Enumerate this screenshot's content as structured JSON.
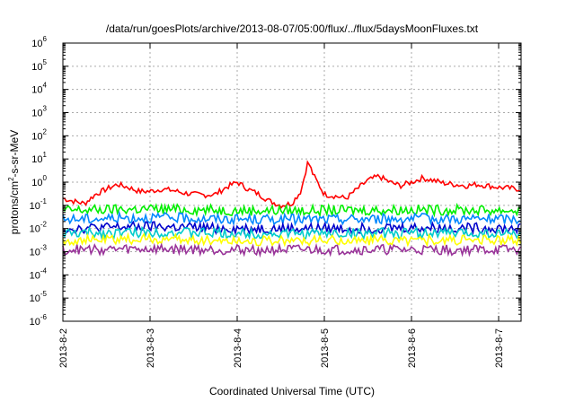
{
  "chart_data": {
    "type": "line",
    "title": "/data/run/goesPlots/archive/2013-08-07/05:00/flux/../flux/5daysMoonFluxes.txt",
    "xlabel": "Coordinated Universal Time (UTC)",
    "ylabel": "protons/cm²-s-sr-MeV",
    "ylabel_parts": [
      "protons/cm",
      "2",
      "-s-sr-MeV"
    ],
    "yscale": "log",
    "ylim": [
      1e-06,
      1000000.0
    ],
    "xlim": [
      "2013-8-2",
      "2013-8-7T06:30"
    ],
    "x_ticks": [
      "2013-8-2",
      "2013-8-3",
      "2013-8-4",
      "2013-8-5",
      "2013-8-6",
      "2013-8-7"
    ],
    "y_ticks": [
      {
        "base": "10",
        "exp": "-6"
      },
      {
        "base": "10",
        "exp": "-5"
      },
      {
        "base": "10",
        "exp": "-4"
      },
      {
        "base": "10",
        "exp": "-3"
      },
      {
        "base": "10",
        "exp": "-2"
      },
      {
        "base": "10",
        "exp": "-1"
      },
      {
        "base": "10",
        "exp": "0"
      },
      {
        "base": "10",
        "exp": "1"
      },
      {
        "base": "10",
        "exp": "2"
      },
      {
        "base": "10",
        "exp": "3"
      },
      {
        "base": "10",
        "exp": "4"
      },
      {
        "base": "10",
        "exp": "5"
      },
      {
        "base": "10",
        "exp": "6"
      }
    ],
    "grid": true,
    "series": [
      {
        "color": "#ff0000",
        "x": [
          "2013-8-2T00:00",
          "2013-8-2T03:00",
          "2013-8-2T06:00",
          "2013-8-2T09:00",
          "2013-8-2T12:00",
          "2013-8-2T15:00",
          "2013-8-2T18:00",
          "2013-8-2T21:00",
          "2013-8-3T00:00",
          "2013-8-3T03:00",
          "2013-8-3T06:00",
          "2013-8-3T09:00",
          "2013-8-3T12:00",
          "2013-8-3T15:00",
          "2013-8-3T18:00",
          "2013-8-3T21:00",
          "2013-8-4T00:00",
          "2013-8-4T03:00",
          "2013-8-4T06:00",
          "2013-8-4T09:00",
          "2013-8-4T12:00",
          "2013-8-4T15:00",
          "2013-8-4T17:30",
          "2013-8-4T18:00",
          "2013-8-4T19:30",
          "2013-8-4T21:00",
          "2013-8-5T00:00",
          "2013-8-5T03:00",
          "2013-8-5T06:00",
          "2013-8-5T09:00",
          "2013-8-5T12:00",
          "2013-8-5T15:00",
          "2013-8-5T18:00",
          "2013-8-5T21:00",
          "2013-8-6T00:00",
          "2013-8-6T03:00",
          "2013-8-6T06:00",
          "2013-8-6T09:00",
          "2013-8-6T12:00",
          "2013-8-6T15:00",
          "2013-8-6T18:00",
          "2013-8-6T21:00",
          "2013-8-7T00:00",
          "2013-8-7T03:00",
          "2013-8-7T06:00"
        ],
        "values": [
          0.2,
          0.15,
          0.12,
          0.3,
          0.5,
          0.8,
          0.6,
          0.4,
          0.4,
          0.5,
          0.45,
          0.35,
          0.3,
          0.28,
          0.3,
          0.6,
          1.0,
          0.5,
          0.3,
          0.15,
          0.1,
          0.12,
          0.4,
          0.8,
          8,
          2,
          0.3,
          0.25,
          0.2,
          0.5,
          1.2,
          1.8,
          1.0,
          0.7,
          1.0,
          1.5,
          1.2,
          0.9,
          0.8,
          0.7,
          0.8,
          0.7,
          0.6,
          0.55,
          0.5
        ]
      },
      {
        "color": "#00ee00",
        "x": [
          "2013-8-2",
          "2013-8-3",
          "2013-8-4",
          "2013-8-5",
          "2013-8-6",
          "2013-8-7T06:00"
        ],
        "values": [
          0.06,
          0.07,
          0.06,
          0.06,
          0.065,
          0.06
        ]
      },
      {
        "color": "#0088ff",
        "x": [
          "2013-8-2",
          "2013-8-3",
          "2013-8-4",
          "2013-8-5",
          "2013-8-6",
          "2013-8-7T06:00"
        ],
        "values": [
          0.025,
          0.03,
          0.025,
          0.025,
          0.027,
          0.025
        ]
      },
      {
        "color": "#0000cc",
        "x": [
          "2013-8-2",
          "2013-8-3",
          "2013-8-4",
          "2013-8-5",
          "2013-8-6",
          "2013-8-7T06:00"
        ],
        "values": [
          0.01,
          0.012,
          0.01,
          0.01,
          0.011,
          0.01
        ]
      },
      {
        "color": "#00cccc",
        "x": [
          "2013-8-2",
          "2013-8-3",
          "2013-8-4",
          "2013-8-5",
          "2013-8-6",
          "2013-8-7T06:00"
        ],
        "values": [
          0.006,
          0.007,
          0.006,
          0.006,
          0.0065,
          0.006
        ]
      },
      {
        "color": "#ffff00",
        "x": [
          "2013-8-2",
          "2013-8-3",
          "2013-8-4",
          "2013-8-5",
          "2013-8-6",
          "2013-8-7T06:00"
        ],
        "values": [
          0.003,
          0.0035,
          0.003,
          0.003,
          0.0032,
          0.003
        ]
      },
      {
        "color": "#993399",
        "x": [
          "2013-8-2",
          "2013-8-3",
          "2013-8-4",
          "2013-8-5",
          "2013-8-6",
          "2013-8-7T06:00"
        ],
        "values": [
          0.0012,
          0.0013,
          0.0012,
          0.0012,
          0.0012,
          0.0012
        ]
      }
    ]
  }
}
